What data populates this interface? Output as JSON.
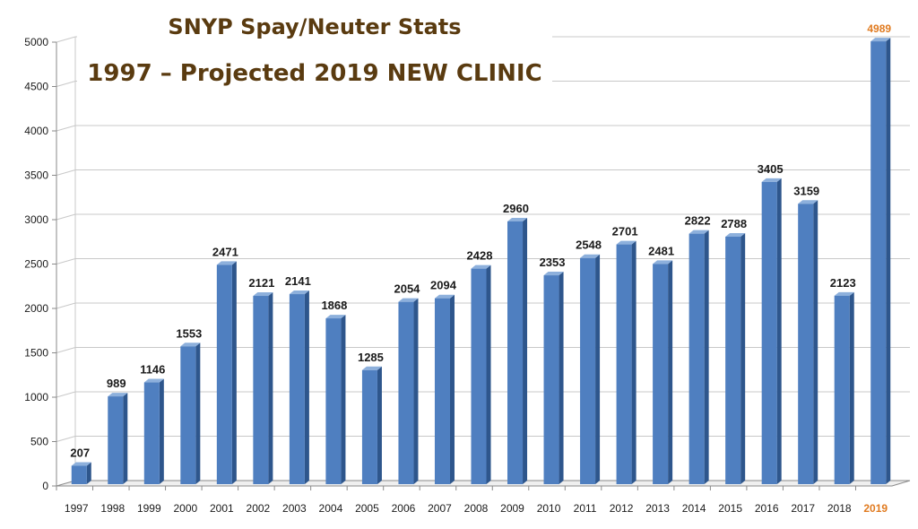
{
  "chart_data": {
    "type": "bar",
    "title": "SNYP Spay/Neuter Stats",
    "subtitle": "1997 – Projected 2019 NEW CLINIC",
    "xlabel": "",
    "ylabel": "",
    "categories": [
      "1997",
      "1998",
      "1999",
      "2000",
      "2001",
      "2002",
      "2003",
      "2004",
      "2005",
      "2006",
      "2007",
      "2008",
      "2009",
      "2010",
      "2011",
      "2012",
      "2013",
      "2014",
      "2015",
      "2016",
      "2017",
      "2018",
      "2019"
    ],
    "values": [
      207,
      989,
      1146,
      1553,
      2471,
      2121,
      2141,
      1868,
      1285,
      2054,
      2094,
      2428,
      2960,
      2353,
      2548,
      2701,
      2481,
      2822,
      2788,
      3405,
      3159,
      2123,
      4989
    ],
    "ylim": [
      0,
      5000
    ],
    "yticks": [
      0,
      500,
      1000,
      1500,
      2000,
      2500,
      3000,
      3500,
      4000,
      4500,
      5000
    ],
    "grid": true,
    "legend": "none",
    "highlight_category": "2019",
    "colors": {
      "bar_front": "#4f7fc0",
      "bar_side": "#2e568c",
      "bar_top": "#8db0dc",
      "highlight_label": "#e07a1f",
      "grid": "#c8c8c8",
      "axis": "#8a8a8a",
      "label": "#1a1a1a"
    }
  }
}
